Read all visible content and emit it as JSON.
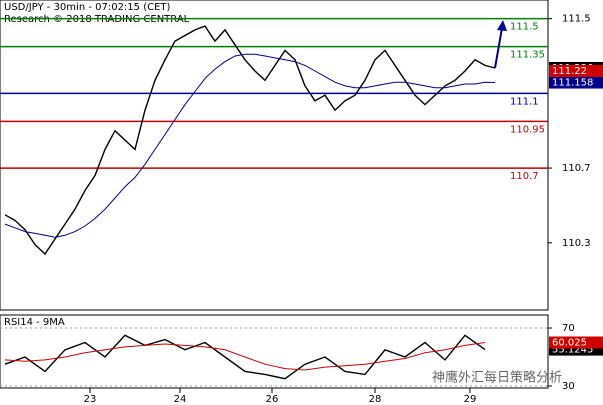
{
  "chart_data": [
    {
      "type": "line",
      "title": "USD/JPY - 30min - 07:02:15 (CET)",
      "subtitle": "Research © 2018 TRADING CENTRAL",
      "xlim": [
        -0.5,
        54.3
      ],
      "xticks": [
        {
          "value": 8.5,
          "label": "23"
        },
        {
          "value": 17.5,
          "label": "24"
        },
        {
          "value": 26.7,
          "label": "26"
        },
        {
          "value": 37,
          "label": "28"
        },
        {
          "value": 46.5,
          "label": "29"
        }
      ],
      "ylim": [
        109.94,
        111.6
      ],
      "yticks": [
        111.5,
        110.7,
        110.3
      ],
      "series": [
        {
          "color": "#000000",
          "values": [
            110.45,
            110.42,
            110.37,
            110.29,
            110.24,
            110.32,
            110.4,
            110.48,
            110.58,
            110.66,
            110.8,
            110.9,
            110.85,
            110.8,
            111.01,
            111.17,
            111.28,
            111.38,
            111.41,
            111.44,
            111.46,
            111.38,
            111.44,
            111.36,
            111.28,
            111.22,
            111.17,
            111.25,
            111.33,
            111.28,
            111.14,
            111.06,
            111.09,
            111.01,
            111.06,
            111.09,
            111.17,
            111.28,
            111.33,
            111.25,
            111.17,
            111.09,
            111.04,
            111.09,
            111.14,
            111.17,
            111.22,
            111.28,
            111.25,
            111.236
          ]
        },
        {
          "color": "#00008b",
          "values": [
            110.4,
            110.38,
            110.36,
            110.35,
            110.34,
            110.33,
            110.34,
            110.36,
            110.39,
            110.43,
            110.48,
            110.54,
            110.6,
            110.65,
            110.72,
            110.8,
            110.88,
            110.96,
            111.04,
            111.11,
            111.18,
            111.23,
            111.27,
            111.3,
            111.31,
            111.31,
            111.3,
            111.29,
            111.28,
            111.27,
            111.25,
            111.22,
            111.19,
            111.16,
            111.14,
            111.13,
            111.13,
            111.14,
            111.15,
            111.16,
            111.16,
            111.15,
            111.14,
            111.13,
            111.13,
            111.14,
            111.15,
            111.15,
            111.16,
            111.158
          ]
        }
      ],
      "levels": [
        {
          "value": 111.5,
          "color": "#008000"
        },
        {
          "value": 111.35,
          "color": "#008000"
        },
        {
          "value": 111.1,
          "color": "#0000a0"
        },
        {
          "value": 110.95,
          "color": "#c00000"
        },
        {
          "value": 110.7,
          "color": "#c00000"
        }
      ],
      "markers": [
        {
          "value": 111.22,
          "color": "#d00000"
        }
      ]
    },
    {
      "type": "line",
      "title": "RSI14 - 9MA",
      "xlim": [
        -0.25,
        27.15
      ],
      "ylim": [
        28.6,
        79
      ],
      "yticks": [
        70,
        30
      ],
      "series": [
        {
          "color": "#000000",
          "values": [
            45,
            50,
            40,
            55,
            60,
            50,
            65,
            58,
            62,
            55,
            60,
            50,
            40,
            38,
            35,
            45,
            50,
            40,
            38,
            55,
            50,
            60,
            48,
            65,
            55.1245
          ]
        },
        {
          "color": "#d00000",
          "values": [
            48,
            47,
            48,
            50,
            53,
            55,
            57,
            58,
            59,
            58,
            57,
            55,
            50,
            45,
            42,
            41,
            43,
            44,
            45,
            47,
            49,
            53,
            55,
            58,
            60.025
          ]
        }
      ]
    }
  ],
  "watermark": "神鹰外汇每日策略分析"
}
